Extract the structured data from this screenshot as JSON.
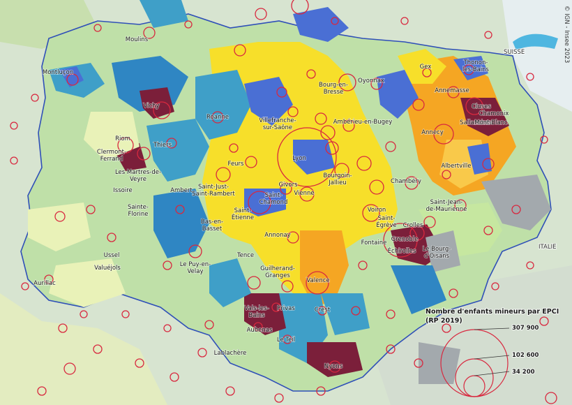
{
  "map": {
    "credit": "© IGN - Insee 2023",
    "countries": [
      "SUISSE",
      "ITALIE"
    ],
    "cities": [
      "Moulins",
      "Montluçon",
      "Vichy",
      "Roanne",
      "Riom",
      "Clermont-Ferrand",
      "Thiers",
      "Les Martres-de-Veyre",
      "Issoire",
      "Ambert",
      "Sainte-Florine",
      "Villefranche-sur-Saône",
      "Feurs",
      "Lyon",
      "Givors",
      "Vienne",
      "Saint-Just-Saint-Rambert",
      "Saint-Chamond",
      "Saint-Étienne",
      "Bas-en-Basset",
      "Annonay",
      "Tence",
      "Le Puy-en-Velay",
      "Ussel",
      "Valuéjols",
      "Aurillac",
      "Bourg-en-Bresse",
      "Oyonnax",
      "Ambérieu-en-Bugey",
      "Bourgoin-Jallieu",
      "Gex",
      "Thonon-les-Bains",
      "Annemasse",
      "Cluses",
      "Chamonix",
      "Sallanches",
      "Mont-Blanc",
      "Annecy",
      "Albertville",
      "Chambéry",
      "Voiron",
      "Saint-Égrève",
      "Crolles",
      "Grenoble",
      "Fontaine",
      "Échirolles",
      "Saint-Jean-de-Maurienne",
      "Le Bourg-d'Oisans",
      "Guilherand-Granges",
      "Valence",
      "Crest",
      "Vals-les-Bains",
      "Privas",
      "Aubenas",
      "Le Teil",
      "Lablachère",
      "Nyons"
    ]
  },
  "legend": {
    "title_line1": "Nombre d'enfants mineurs par EPCI",
    "title_line2": "(RP 2019)",
    "values": [
      "307 900",
      "102 600",
      "34 200"
    ]
  },
  "colors": {
    "very_low": "#e9f2b8",
    "low": "#c9e3b0",
    "teal": "#3f9fc8",
    "blue": "#4a6fd4",
    "yellow": "#f7df2a",
    "orange": "#f5a623",
    "maroon": "#7b1f3a",
    "grey": "#a3a9ad",
    "circle": "#d8283f",
    "border": "#2f4fb8"
  }
}
